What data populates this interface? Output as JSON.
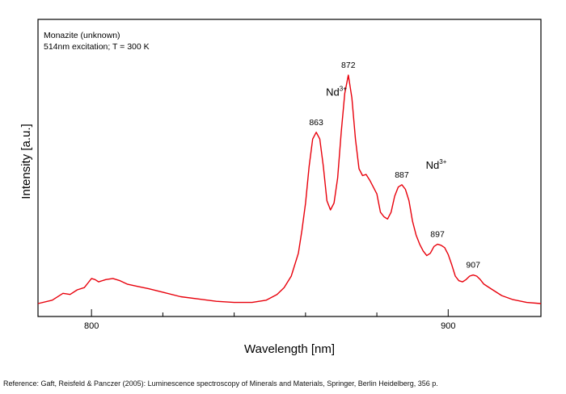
{
  "chart_data": {
    "type": "line",
    "annotation_lines": [
      "Monazite (unknown)",
      "514nm excitation; T = 300 K"
    ],
    "xlabel": "Wavelength [nm]",
    "ylabel": "Intensity [a.u.]",
    "xlim": [
      785,
      926
    ],
    "ylim": [
      0,
      1.04
    ],
    "x_ticks_major": [
      800,
      900
    ],
    "x_ticks_minor": [
      820,
      840,
      860,
      880
    ],
    "y_ticks": [],
    "grid": false,
    "series": [
      {
        "color": "#e8000b",
        "x": [
          785,
          789,
          792,
          794,
          796,
          798,
          799,
          800,
          801,
          802,
          804,
          806,
          808,
          810,
          813,
          816,
          820,
          825,
          830,
          835,
          840,
          845,
          849,
          852,
          854,
          856,
          858,
          859,
          860,
          861,
          862,
          863,
          864,
          865,
          866,
          867,
          868,
          869,
          870,
          871,
          872,
          873,
          874,
          875,
          876,
          877,
          878,
          879,
          880,
          881,
          882,
          883,
          884,
          885,
          886,
          887,
          888,
          889,
          890,
          891,
          892,
          893,
          894,
          895,
          896,
          897,
          898,
          899,
          900,
          901,
          902,
          903,
          904,
          905,
          906,
          907,
          908,
          909,
          910,
          912,
          915,
          918,
          922,
          926
        ],
        "y": [
          0.0,
          0.015,
          0.045,
          0.04,
          0.06,
          0.07,
          0.09,
          0.11,
          0.105,
          0.095,
          0.105,
          0.11,
          0.1,
          0.085,
          0.075,
          0.065,
          0.05,
          0.03,
          0.02,
          0.01,
          0.005,
          0.005,
          0.015,
          0.04,
          0.07,
          0.12,
          0.22,
          0.32,
          0.44,
          0.6,
          0.72,
          0.75,
          0.72,
          0.6,
          0.45,
          0.41,
          0.44,
          0.55,
          0.75,
          0.92,
          1.0,
          0.9,
          0.72,
          0.59,
          0.56,
          0.565,
          0.54,
          0.51,
          0.48,
          0.4,
          0.38,
          0.37,
          0.4,
          0.47,
          0.51,
          0.52,
          0.5,
          0.45,
          0.36,
          0.3,
          0.26,
          0.23,
          0.21,
          0.22,
          0.25,
          0.26,
          0.255,
          0.245,
          0.215,
          0.17,
          0.12,
          0.1,
          0.095,
          0.105,
          0.12,
          0.125,
          0.12,
          0.105,
          0.085,
          0.065,
          0.035,
          0.018,
          0.005,
          0.0
        ]
      }
    ],
    "peak_labels": [
      {
        "text": "863",
        "x": 863,
        "y": 0.75
      },
      {
        "text": "872",
        "x": 872,
        "y": 1.0
      },
      {
        "text": "887",
        "x": 887,
        "y": 0.52
      },
      {
        "text": "897",
        "x": 897,
        "y": 0.26
      },
      {
        "text": "907",
        "x": 907,
        "y": 0.125
      }
    ],
    "ion_labels": [
      {
        "base": "Nd",
        "sup": "3+",
        "x": 868,
        "y": 0.91
      },
      {
        "base": "Nd",
        "sup": "3+",
        "x": 896,
        "y": 0.59
      }
    ]
  },
  "reference": "Reference: Gaft, Reisfeld & Panczer (2005): Luminescence spectroscopy of Minerals and Materials, Springer, Berlin Heidelberg, 356 p."
}
